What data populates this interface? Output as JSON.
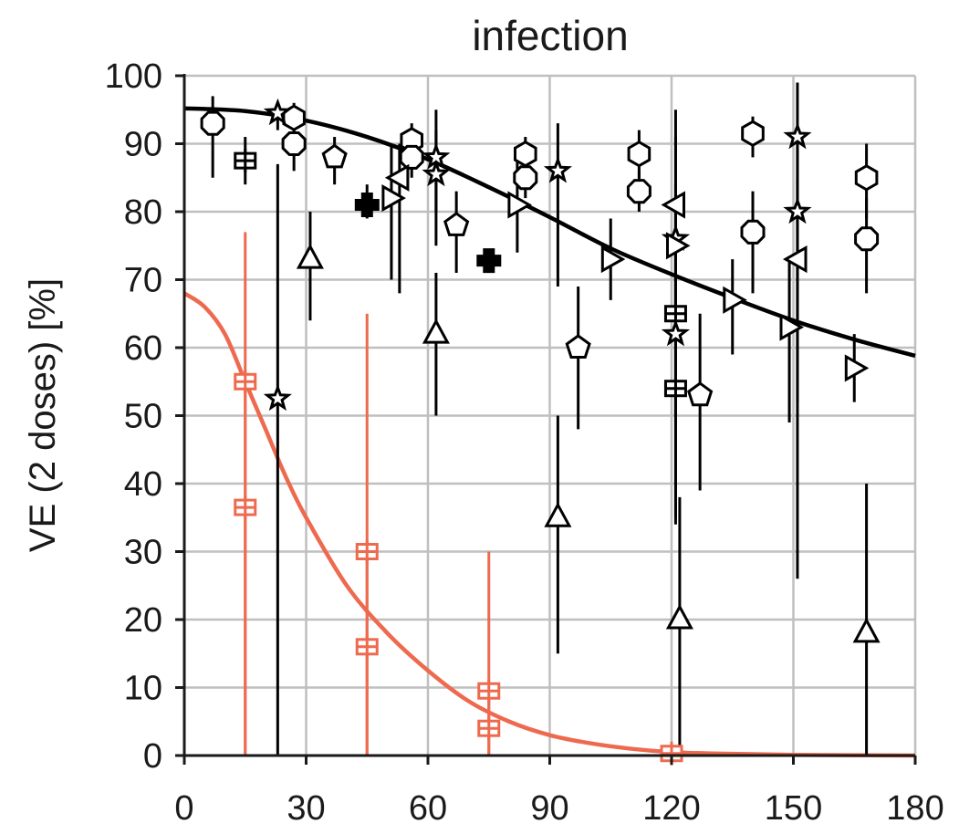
{
  "chart_data": {
    "type": "scatter",
    "title": "infection",
    "xlabel": "",
    "ylabel": "VE (2 doses) [%]",
    "xlim": [
      0,
      180
    ],
    "ylim": [
      0,
      100
    ],
    "xticks": [
      0,
      30,
      60,
      90,
      120,
      150,
      180
    ],
    "yticks": [
      0,
      10,
      20,
      30,
      40,
      50,
      60,
      70,
      80,
      90,
      100
    ],
    "grid": true,
    "colors": {
      "black": "#000000",
      "orange": "#ee6a4f",
      "grid": "#bfbfbf"
    },
    "fit_curves": [
      {
        "color": "#000000",
        "x": [
          0,
          15,
          30,
          45,
          60,
          75,
          90,
          105,
          120,
          135,
          150,
          165,
          180
        ],
        "y": [
          95.2,
          94.8,
          93.4,
          91.0,
          87.7,
          83.6,
          79.2,
          74.6,
          70.8,
          67.3,
          64.0,
          61.2,
          58.8
        ]
      },
      {
        "color": "#ee6a4f",
        "x": [
          0,
          5,
          10,
          15,
          20,
          25,
          30,
          40,
          50,
          60,
          70,
          80,
          90,
          100,
          110,
          120,
          130,
          150,
          180
        ],
        "y": [
          68,
          66,
          62,
          55,
          48,
          41,
          35,
          25,
          18,
          12.5,
          8,
          5,
          3,
          1.8,
          1.0,
          0.5,
          0.3,
          0.1,
          0
        ]
      }
    ],
    "series": [
      {
        "marker": "hexagon",
        "color": "#000000",
        "points": [
          {
            "x": 27,
            "y": 93.8,
            "lo": 91,
            "hi": 96
          },
          {
            "x": 56,
            "y": 90.5,
            "lo": 88,
            "hi": 93
          },
          {
            "x": 84,
            "y": 88.5,
            "lo": 86,
            "hi": 91
          },
          {
            "x": 112,
            "y": 88.5,
            "lo": 85,
            "hi": 92
          },
          {
            "x": 140,
            "y": 91.5,
            "lo": 88,
            "hi": 94
          },
          {
            "x": 168,
            "y": 85,
            "lo": 79,
            "hi": 90
          }
        ]
      },
      {
        "marker": "octagon",
        "color": "#000000",
        "points": [
          {
            "x": 7,
            "y": 93,
            "lo": 85,
            "hi": 97
          },
          {
            "x": 27,
            "y": 90,
            "lo": 86,
            "hi": 93
          },
          {
            "x": 56,
            "y": 88,
            "lo": 85,
            "hi": 91
          },
          {
            "x": 84,
            "y": 85,
            "lo": 82,
            "hi": 88
          },
          {
            "x": 112,
            "y": 83,
            "lo": 80,
            "hi": 86
          },
          {
            "x": 140,
            "y": 77,
            "lo": 68,
            "hi": 83
          },
          {
            "x": 168,
            "y": 76,
            "lo": 68,
            "hi": 82
          }
        ]
      },
      {
        "marker": "star",
        "color": "#000000",
        "points": [
          {
            "x": 23,
            "y": 94.5,
            "lo": 92,
            "hi": 96
          },
          {
            "x": 23,
            "y": 52.5,
            "lo": 0,
            "hi": 87
          },
          {
            "x": 62,
            "y": 88,
            "lo": 80,
            "hi": 95
          },
          {
            "x": 62,
            "y": 85.5,
            "lo": 75,
            "hi": 92
          },
          {
            "x": 92,
            "y": 86,
            "lo": 69,
            "hi": 93
          },
          {
            "x": 121,
            "y": 76,
            "lo": 50,
            "hi": 95
          },
          {
            "x": 121,
            "y": 62,
            "lo": 35,
            "hi": 80
          },
          {
            "x": 151,
            "y": 91,
            "lo": 78,
            "hi": 99
          },
          {
            "x": 151,
            "y": 80,
            "lo": 26,
            "hi": 90
          }
        ]
      },
      {
        "marker": "plus-square",
        "color": "#000000",
        "points": [
          {
            "x": 15,
            "y": 87.5,
            "lo": 84,
            "hi": 91
          },
          {
            "x": 121,
            "y": 65,
            "lo": 50,
            "hi": 75
          },
          {
            "x": 121,
            "y": 54,
            "lo": 34,
            "hi": 70
          }
        ]
      },
      {
        "marker": "cross-filled",
        "color": "#000000",
        "points": [
          {
            "x": 45,
            "y": 81,
            "lo": 79,
            "hi": 84
          },
          {
            "x": 75,
            "y": 72.8,
            "lo": 71,
            "hi": 74.5
          }
        ]
      },
      {
        "marker": "triangle-right",
        "color": "#000000",
        "points": [
          {
            "x": 51,
            "y": 82,
            "lo": 70,
            "hi": 90
          },
          {
            "x": 82,
            "y": 81,
            "lo": 74,
            "hi": 88
          },
          {
            "x": 105,
            "y": 73,
            "lo": 67,
            "hi": 79
          },
          {
            "x": 121,
            "y": 75,
            "lo": 62,
            "hi": 84
          },
          {
            "x": 135,
            "y": 67,
            "lo": 59,
            "hi": 73
          },
          {
            "x": 149,
            "y": 63,
            "lo": 49,
            "hi": 73
          },
          {
            "x": 165,
            "y": 57,
            "lo": 52,
            "hi": 62
          }
        ]
      },
      {
        "marker": "triangle-left",
        "color": "#000000",
        "points": [
          {
            "x": 53,
            "y": 85,
            "lo": 68,
            "hi": 90
          },
          {
            "x": 121,
            "y": 81,
            "lo": 62,
            "hi": 91
          },
          {
            "x": 151,
            "y": 73,
            "lo": 52,
            "hi": 85
          }
        ]
      },
      {
        "marker": "pentagon",
        "color": "#000000",
        "points": [
          {
            "x": 37,
            "y": 88,
            "lo": 84,
            "hi": 91
          },
          {
            "x": 67,
            "y": 78,
            "lo": 71,
            "hi": 83
          },
          {
            "x": 97,
            "y": 60,
            "lo": 48,
            "hi": 69
          },
          {
            "x": 127,
            "y": 53,
            "lo": 39,
            "hi": 65
          }
        ]
      },
      {
        "marker": "triangle-up",
        "color": "#000000",
        "points": [
          {
            "x": 31,
            "y": 73,
            "lo": 64,
            "hi": 80
          },
          {
            "x": 62,
            "y": 62,
            "lo": 50,
            "hi": 71
          },
          {
            "x": 92,
            "y": 35,
            "lo": 15,
            "hi": 50
          },
          {
            "x": 122,
            "y": 20,
            "lo": 0,
            "hi": 38
          },
          {
            "x": 168,
            "y": 18,
            "lo": 0,
            "hi": 40
          }
        ]
      },
      {
        "marker": "plus-square",
        "color": "#ee6a4f",
        "points": [
          {
            "x": 15,
            "y": 55,
            "lo": 0,
            "hi": 77
          },
          {
            "x": 15,
            "y": 36.5,
            "lo": 0,
            "hi": 55
          },
          {
            "x": 45,
            "y": 30,
            "lo": 0,
            "hi": 65
          },
          {
            "x": 45,
            "y": 16,
            "lo": 0,
            "hi": 30
          },
          {
            "x": 75,
            "y": 9.5,
            "lo": 0,
            "hi": 30
          },
          {
            "x": 75,
            "y": 4,
            "lo": 0,
            "hi": 10
          },
          {
            "x": 120,
            "y": 0.3,
            "lo": 0,
            "hi": 1
          }
        ]
      }
    ]
  }
}
